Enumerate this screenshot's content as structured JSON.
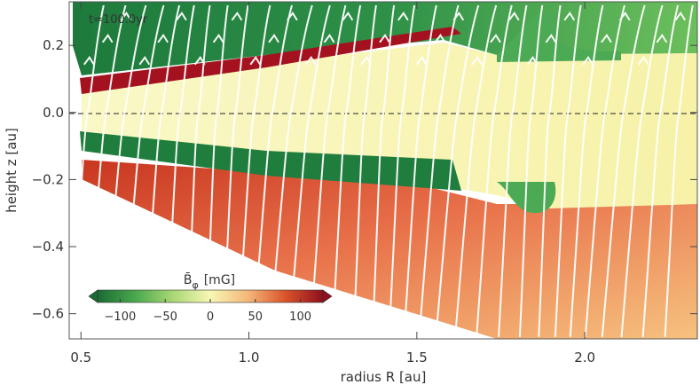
{
  "chart_data": {
    "type": "heatmap",
    "title": "",
    "annotation": "t=100.0yr",
    "xlabel": "radius  R [au]",
    "ylabel": "height  z [au]",
    "xlim": [
      0.465,
      2.335
    ],
    "ylim": [
      -0.675,
      0.33
    ],
    "xticks": [
      0.5,
      1.0,
      1.5,
      2.0
    ],
    "xtick_labels": [
      "0.5",
      "1.0",
      "1.5",
      "2.0"
    ],
    "yticks": [
      0.2,
      0.0,
      -0.2,
      -0.4,
      -0.6
    ],
    "ytick_labels": [
      "0.2",
      "0.0",
      "−0.2",
      "−0.4",
      "−0.6"
    ],
    "midplane_line": "dashed",
    "colorbar": {
      "label": "B̄",
      "label_sub": "φ",
      "label_unit": "[mG]",
      "range": [
        -125,
        125
      ],
      "ticks": [
        -100,
        -50,
        0,
        50,
        100
      ],
      "tick_labels": [
        "−100",
        "−50",
        "0",
        "50",
        "100"
      ],
      "colormap": "diverging green-yellow-red",
      "colors": [
        "#1a6b34",
        "#49a84d",
        "#a9d775",
        "#f7f7b4",
        "#f4b779",
        "#d9542a",
        "#8e0f1e"
      ],
      "extend": "both"
    },
    "regions": [
      {
        "name": "upper atmosphere",
        "field": "negative",
        "color": "#2a8a45"
      },
      {
        "name": "upper current sheet",
        "field": "positive",
        "color": "#b0202a"
      },
      {
        "name": "midplane disk",
        "field": "near zero",
        "color": "#f8f7bd"
      },
      {
        "name": "lower current sheet",
        "field": "negative",
        "color": "#1d7a3c"
      },
      {
        "name": "lower atmosphere",
        "field": "positive",
        "color": "#d94a2a"
      }
    ],
    "field_lines": "white streamlines with arrows"
  }
}
